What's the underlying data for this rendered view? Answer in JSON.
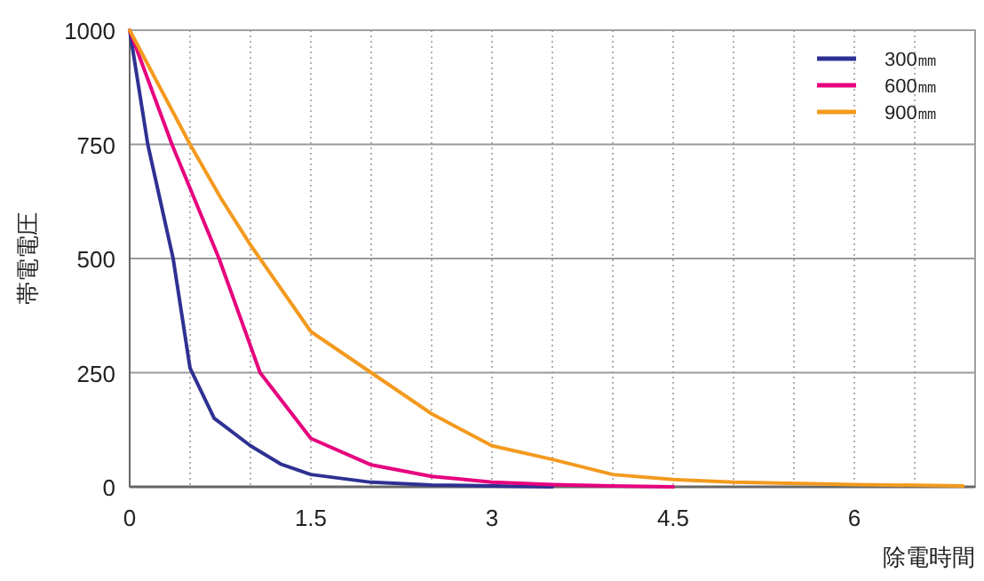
{
  "chart_data": {
    "type": "line",
    "xlabel": "除電時間",
    "ylabel": "帯電電圧",
    "xlim": [
      0,
      7
    ],
    "ylim": [
      0,
      1000
    ],
    "xticks": [
      0,
      {
        "value": 0.5,
        "label": null
      },
      {
        "value": 1,
        "label": null
      },
      {
        "value": 1.5,
        "label": "1.5"
      },
      {
        "value": 2,
        "label": null
      },
      {
        "value": 2.5,
        "label": null
      },
      3,
      {
        "value": 3.5,
        "label": null
      },
      {
        "value": 4,
        "label": null
      },
      {
        "value": 4.5,
        "label": "4.5"
      },
      {
        "value": 5,
        "label": null
      },
      {
        "value": 5.5,
        "label": null
      },
      6,
      {
        "value": 6.5,
        "label": null
      }
    ],
    "yticks": [
      0,
      250,
      500,
      750,
      1000
    ],
    "grid": true,
    "legend": "top right",
    "marker": "none",
    "line_style": "solid",
    "series": [
      {
        "name": "300㎜",
        "color": "#2e3192",
        "x": [
          0,
          0.15,
          0.36,
          0.5,
          0.7,
          1.0,
          1.25,
          1.5,
          2,
          2.5,
          3,
          3.5
        ],
        "values": [
          1000,
          750,
          500,
          260,
          150,
          90,
          50,
          27,
          10,
          4,
          2,
          0
        ]
      },
      {
        "name": "600㎜",
        "color": "#e6007e",
        "x": [
          0,
          0.35,
          0.74,
          1.08,
          1.5,
          2,
          2.5,
          3,
          3.5,
          4,
          4.5
        ],
        "values": [
          1000,
          750,
          500,
          250,
          106,
          48,
          23,
          10,
          5,
          2,
          0
        ]
      },
      {
        "name": "900㎜",
        "color": "#f39a1e",
        "x": [
          0,
          0.5,
          0.76,
          1.0,
          1.5,
          2.0,
          2.5,
          3.0,
          3.5,
          4.0,
          4.5,
          5,
          6,
          6.9
        ],
        "values": [
          1000,
          750,
          630,
          530,
          340,
          250,
          160,
          90,
          60,
          27,
          16,
          10,
          5,
          2
        ]
      }
    ]
  }
}
